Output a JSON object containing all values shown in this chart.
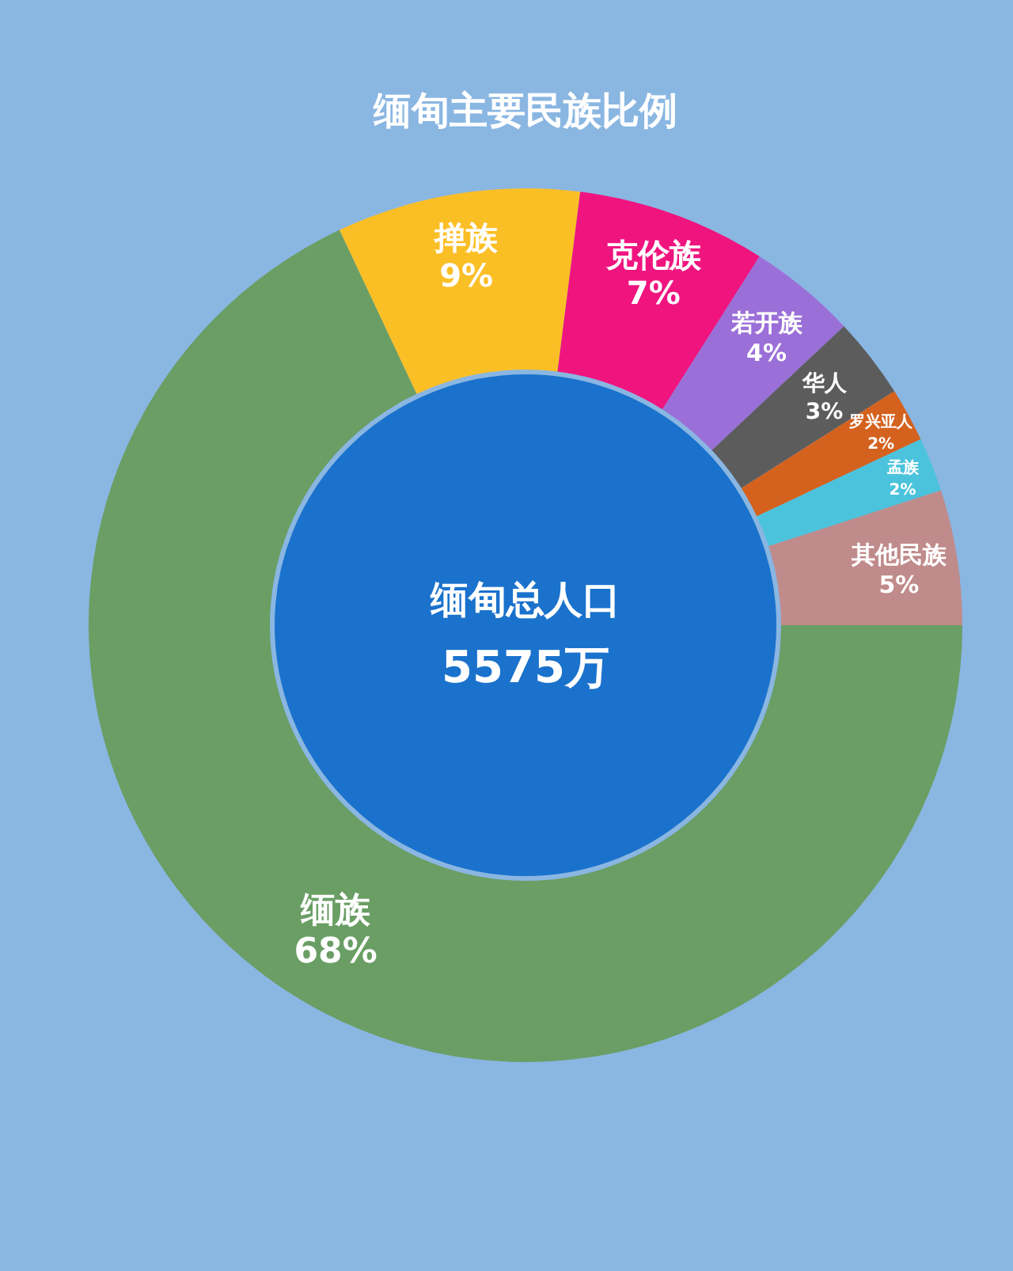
{
  "chart_data": {
    "type": "donut",
    "title": "缅甸主要民族比例",
    "categories": [
      "缅族",
      "掸族",
      "克伦族",
      "若开族",
      "华人",
      "罗兴亚人",
      "孟族",
      "其他民族"
    ],
    "values": [
      68,
      9,
      7,
      4,
      3,
      2,
      2,
      5
    ],
    "value_labels": [
      "68%",
      "9%",
      "7%",
      "4%",
      "3%",
      "2%",
      "2%",
      "5%"
    ],
    "colors": [
      "#6a9e64",
      "#fbbf26",
      "#f0147f",
      "#9b6fd8",
      "#5c5c5c",
      "#d4621e",
      "#4cc3dc",
      "#c08b8b"
    ],
    "annotations": [
      "缅甸总人口",
      "5575万"
    ]
  }
}
